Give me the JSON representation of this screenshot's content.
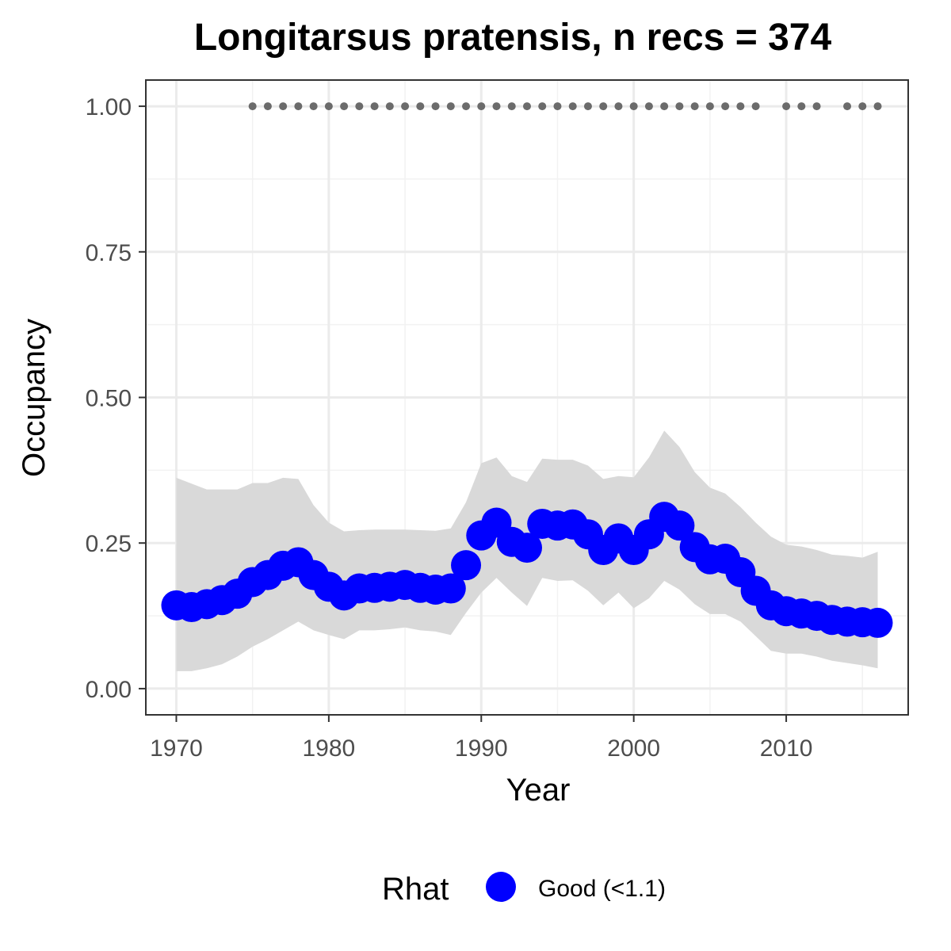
{
  "chart_data": {
    "type": "line",
    "title": "Longitarsus pratensis, n recs = 374",
    "xlabel": "Year",
    "ylabel": "Occupancy",
    "xlim": [
      1968,
      2018
    ],
    "ylim": [
      -0.045,
      1.045
    ],
    "x_ticks": [
      1970,
      1980,
      1990,
      2000,
      2010
    ],
    "x_tick_labels": [
      "1970",
      "1980",
      "1990",
      "2000",
      "2010"
    ],
    "y_ticks": [
      0,
      0.25,
      0.5,
      0.75,
      1.0
    ],
    "y_tick_labels": [
      "0.00",
      "0.25",
      "0.50",
      "0.75",
      "1.00"
    ],
    "grid": true,
    "legend": {
      "title": "Rhat",
      "position": "bottom",
      "entries": [
        {
          "label": "Good (<1.1)",
          "color": "#0000ff"
        }
      ]
    },
    "colors": {
      "points": "#0000ff",
      "ribbon": "#d9d9d9",
      "records": "#6b6b6b"
    },
    "x": [
      1970,
      1971,
      1972,
      1973,
      1974,
      1975,
      1976,
      1977,
      1978,
      1979,
      1980,
      1981,
      1982,
      1983,
      1984,
      1985,
      1986,
      1987,
      1988,
      1989,
      1990,
      1991,
      1992,
      1993,
      1994,
      1995,
      1996,
      1997,
      1998,
      1999,
      2000,
      2001,
      2002,
      2003,
      2004,
      2005,
      2006,
      2007,
      2008,
      2009,
      2010,
      2011,
      2012,
      2013,
      2014,
      2015,
      2016
    ],
    "series": [
      {
        "values": [
          0.143,
          0.14,
          0.145,
          0.152,
          0.163,
          0.183,
          0.195,
          0.211,
          0.217,
          0.195,
          0.175,
          0.16,
          0.172,
          0.173,
          0.175,
          0.178,
          0.173,
          0.17,
          0.172,
          0.212,
          0.263,
          0.285,
          0.252,
          0.242,
          0.283,
          0.28,
          0.282,
          0.265,
          0.238,
          0.258,
          0.238,
          0.265,
          0.295,
          0.28,
          0.243,
          0.222,
          0.223,
          0.2,
          0.168,
          0.143,
          0.133,
          0.129,
          0.125,
          0.118,
          0.115,
          0.114,
          0.113
        ],
        "lower": [
          0.03,
          0.03,
          0.035,
          0.042,
          0.055,
          0.072,
          0.085,
          0.1,
          0.115,
          0.1,
          0.092,
          0.085,
          0.1,
          0.1,
          0.102,
          0.105,
          0.1,
          0.098,
          0.092,
          0.13,
          0.165,
          0.19,
          0.165,
          0.142,
          0.19,
          0.185,
          0.186,
          0.168,
          0.143,
          0.165,
          0.138,
          0.155,
          0.185,
          0.17,
          0.145,
          0.128,
          0.128,
          0.115,
          0.09,
          0.065,
          0.06,
          0.06,
          0.055,
          0.048,
          0.044,
          0.04,
          0.035
        ],
        "upper": [
          0.362,
          0.352,
          0.342,
          0.342,
          0.342,
          0.353,
          0.353,
          0.362,
          0.36,
          0.315,
          0.285,
          0.27,
          0.272,
          0.273,
          0.273,
          0.273,
          0.272,
          0.271,
          0.275,
          0.32,
          0.387,
          0.397,
          0.365,
          0.355,
          0.395,
          0.393,
          0.393,
          0.383,
          0.36,
          0.365,
          0.363,
          0.397,
          0.443,
          0.415,
          0.372,
          0.345,
          0.335,
          0.312,
          0.285,
          0.261,
          0.247,
          0.244,
          0.238,
          0.23,
          0.228,
          0.225,
          0.235
        ]
      }
    ],
    "record_years": [
      1975,
      1976,
      1977,
      1978,
      1979,
      1980,
      1981,
      1982,
      1983,
      1984,
      1985,
      1986,
      1987,
      1988,
      1989,
      1990,
      1991,
      1992,
      1993,
      1994,
      1995,
      1996,
      1997,
      1998,
      1999,
      2000,
      2001,
      2002,
      2003,
      2004,
      2005,
      2006,
      2007,
      2008,
      2010,
      2011,
      2012,
      2014,
      2015,
      2016
    ],
    "record_value": 1.0
  }
}
